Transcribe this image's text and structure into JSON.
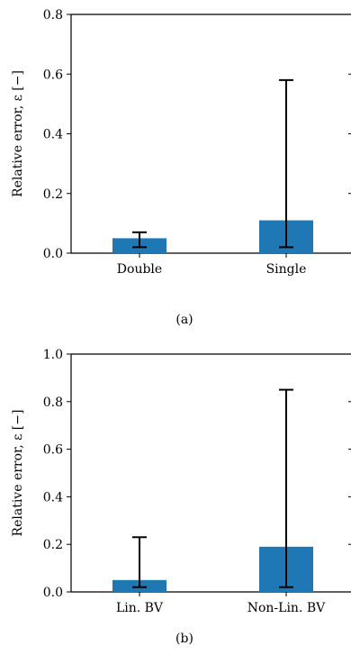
{
  "chart_data": [
    {
      "type": "bar",
      "caption": "(a)",
      "categories": [
        "Double",
        "Single"
      ],
      "values": [
        0.05,
        0.11
      ],
      "error_low": [
        0.02,
        0.02
      ],
      "error_high": [
        0.07,
        0.58
      ],
      "ylabel": "Relative error, ε [−]",
      "ylim": [
        0.0,
        0.8
      ],
      "yticks": [
        "0.0",
        "0.2",
        "0.4",
        "0.6",
        "0.8"
      ],
      "bar_color": "#1f77b4",
      "grid": false
    },
    {
      "type": "bar",
      "caption": "(b)",
      "categories": [
        "Lin. BV",
        "Non-Lin. BV"
      ],
      "values": [
        0.05,
        0.19
      ],
      "error_low": [
        0.02,
        0.02
      ],
      "error_high": [
        0.23,
        0.85
      ],
      "ylabel": "Relative error, ε [−]",
      "ylim": [
        0.0,
        1.0
      ],
      "yticks": [
        "0.0",
        "0.2",
        "0.4",
        "0.6",
        "0.8",
        "1.0"
      ],
      "bar_color": "#1f77b4",
      "grid": false
    }
  ]
}
